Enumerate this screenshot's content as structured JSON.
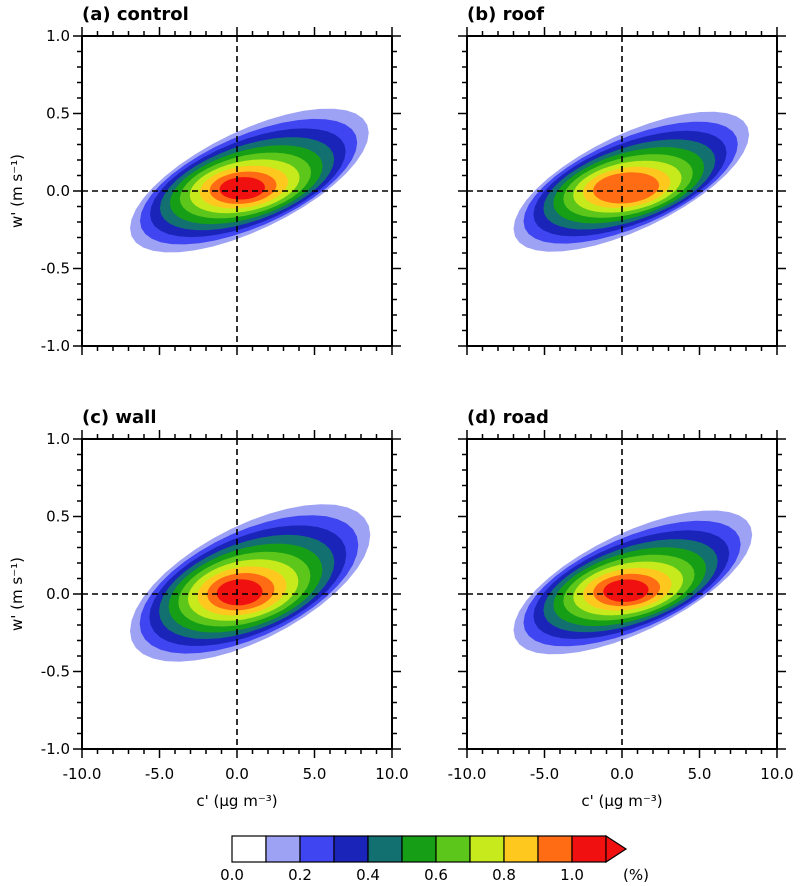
{
  "chart_data": [
    {
      "type": "contour",
      "title": "(a) control",
      "ylabel": "w' (m s⁻¹)",
      "xlabel": "",
      "xlim": [
        -10,
        10
      ],
      "ylim": [
        -1,
        1
      ],
      "xticks": [],
      "yticks": [
        "1.0",
        "0.5",
        "0.0",
        "-0.5",
        "-1.0"
      ],
      "reference_lines": {
        "x": 0,
        "y": 0
      },
      "distribution": {
        "peak": [
          -0.1,
          0.0
        ],
        "peak_value_percent": 1.1,
        "core_offset_x": 0.3,
        "extent_x": [
          -6.9,
          8.5
        ],
        "extent_y": [
          -0.62,
          0.45
        ]
      }
    },
    {
      "type": "contour",
      "title": "(b) roof",
      "ylabel": "",
      "xlabel": "",
      "xlim": [
        -10,
        10
      ],
      "ylim": [
        -1,
        1
      ],
      "xticks": [],
      "yticks": [],
      "reference_lines": {
        "x": 0,
        "y": 0
      },
      "distribution": {
        "peak": [
          -0.2,
          0.0
        ],
        "peak_value_percent": 1.0,
        "core_offset_x": 0.3,
        "extent_x": [
          -7.0,
          8.2
        ],
        "extent_y": [
          -0.55,
          0.48
        ]
      }
    },
    {
      "type": "contour",
      "title": "(c) wall",
      "ylabel": "w' (m s⁻¹)",
      "xlabel": "c' (μg m⁻³)",
      "xlim": [
        -10,
        10
      ],
      "ylim": [
        -1,
        1
      ],
      "xticks": [
        "-10.0",
        "-5.0",
        "0.0",
        "5.0",
        "10.0"
      ],
      "yticks": [
        "1.0",
        "0.5",
        "0.0",
        "-0.5",
        "-1.0"
      ],
      "reference_lines": {
        "x": 0,
        "y": 0
      },
      "distribution": {
        "peak": [
          -0.1,
          0.0
        ],
        "peak_value_percent": 1.1,
        "core_offset_x": 0.1,
        "extent_x": [
          -6.9,
          8.6
        ],
        "extent_y": [
          -0.72,
          0.52
        ]
      }
    },
    {
      "type": "contour",
      "title": "(d) road",
      "ylabel": "",
      "xlabel": "c' (μg m⁻³)",
      "xlim": [
        -10,
        10
      ],
      "ylim": [
        -1,
        1
      ],
      "xticks": [
        "-10.0",
        "-5.0",
        "0.0",
        "5.0",
        "10.0"
      ],
      "yticks": [],
      "reference_lines": {
        "x": 0,
        "y": 0
      },
      "distribution": {
        "peak": [
          -0.3,
          0.0
        ],
        "peak_value_percent": 1.1,
        "core_offset_x": 0.4,
        "extent_x": [
          -7.0,
          8.4
        ],
        "extent_y": [
          -0.62,
          0.45
        ]
      }
    }
  ],
  "colorbar": {
    "levels": [
      0.0,
      0.1,
      0.2,
      0.3,
      0.4,
      0.5,
      0.6,
      0.7,
      0.8,
      0.9,
      1.0,
      1.1
    ],
    "colors": [
      "#ffffff",
      "#9ea2f5",
      "#3f45f0",
      "#1a24b8",
      "#137070",
      "#169e16",
      "#5cc71a",
      "#c7ea1c",
      "#ffc81e",
      "#ff6c14",
      "#f01010"
    ],
    "tick_labels": [
      "0.0",
      "0.2",
      "0.4",
      "0.6",
      "0.8",
      "1.0"
    ],
    "unit": "(%)",
    "extend": "max"
  }
}
